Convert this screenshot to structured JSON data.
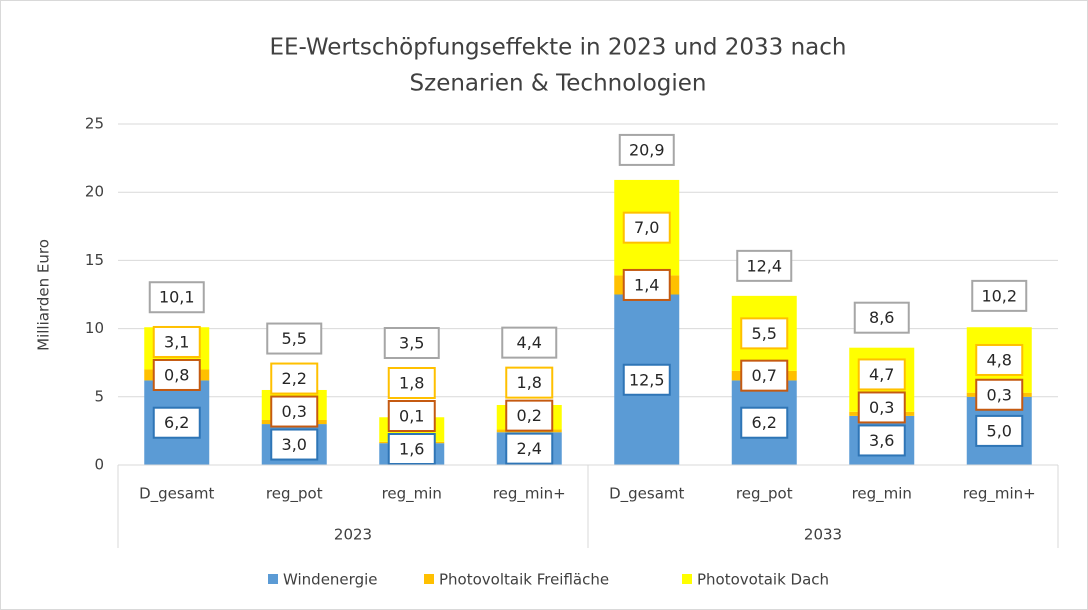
{
  "chart_data": {
    "type": "stacked_bar",
    "title": [
      "EE-Wertschöpfungseffekte in 2023 und 2033 nach",
      "Szenarien & Technologien"
    ],
    "y_label": "Milliarden Euro",
    "groups": [
      {
        "name": "2023",
        "categories": [
          "D_gesamt",
          "reg_pot",
          "reg_min",
          "reg_min+"
        ]
      },
      {
        "name": "2033",
        "categories": [
          "D_gesamt",
          "reg_pot",
          "reg_min",
          "reg_min+"
        ]
      }
    ],
    "series": [
      {
        "name": "Windenergie",
        "color": "#5b9bd5",
        "label_color": "#2e75b6",
        "values": [
          6.2,
          3.0,
          1.6,
          2.4,
          12.5,
          6.2,
          3.6,
          5.0
        ],
        "value_labels": [
          "6,2",
          "3,0",
          "1,6",
          "2,4",
          "12,5",
          "6,2",
          "3,6",
          "5,0"
        ]
      },
      {
        "name": "Photovoltaik Freifläche",
        "color": "#ffc000",
        "label_color": "#c55a11",
        "values": [
          0.8,
          0.3,
          0.1,
          0.2,
          1.4,
          0.7,
          0.3,
          0.3
        ],
        "value_labels": [
          "0,8",
          "0,3",
          "0,1",
          "0,2",
          "1,4",
          "0,7",
          "0,3",
          "0,3"
        ]
      },
      {
        "name": "Photovotaik Dach",
        "color": "#ffff00",
        "label_color": "#ffc000",
        "values": [
          3.1,
          2.2,
          1.8,
          1.8,
          7.0,
          5.5,
          4.7,
          4.8
        ],
        "value_labels": [
          "3,1",
          "2,2",
          "1,8",
          "1,8",
          "7,0",
          "5,5",
          "4,7",
          "4,8"
        ]
      }
    ],
    "totals": [
      10.1,
      5.5,
      3.5,
      4.4,
      20.9,
      12.4,
      8.6,
      10.2
    ],
    "total_labels": [
      "10,1",
      "5,5",
      "3,5",
      "4,4",
      "20,9",
      "12,4",
      "8,6",
      "10,2"
    ],
    "total_label_color": "#a6a6a6",
    "ylim": [
      0,
      25
    ],
    "yticks": [
      0,
      5,
      10,
      15,
      20,
      25
    ],
    "grid": true,
    "legend": "bottom"
  }
}
